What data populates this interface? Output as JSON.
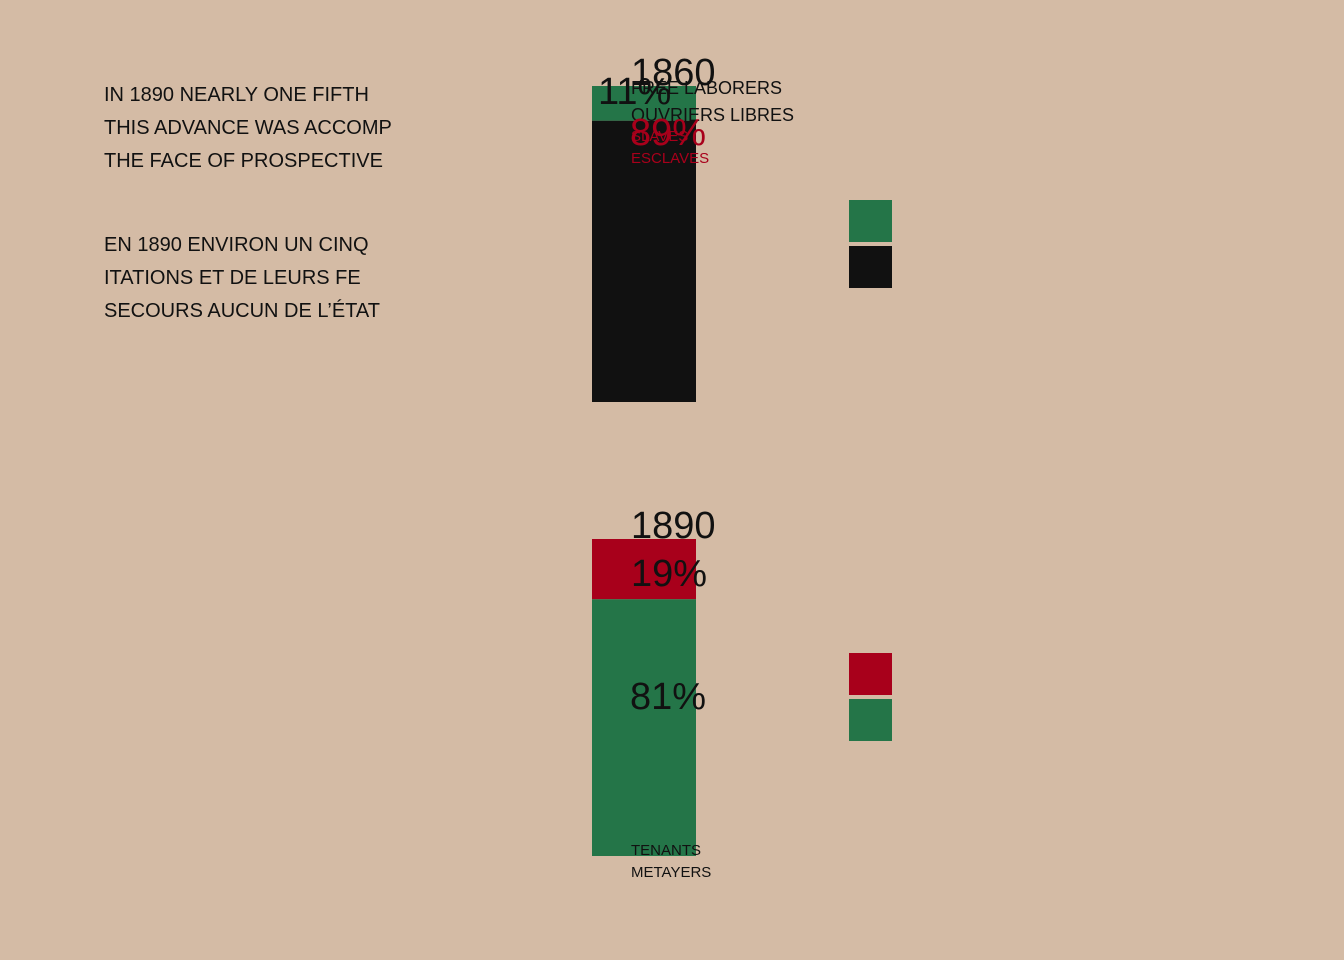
{
  "intro": {
    "english": [
      "IN 1890 NEARLY ONE FIFTH",
      "THIS ADVANCE WAS ACCOMP",
      "THE FACE OF PROSPECTIVE"
    ],
    "french": [
      "EN 1890 ENVIRON UN CINQ",
      "ITATIONS ET DE LEURS FE",
      "SECOURS AUCUN DE L’ÉTAT"
    ]
  },
  "chart_data": [
    {
      "type": "bar",
      "title": "1860",
      "segments": [
        {
          "value": 11,
          "label": "11%",
          "caption": [
            "FREE LABORERS",
            "OUVRIERS LIBRES"
          ],
          "color": "#247548"
        },
        {
          "value": 89,
          "label": "89%",
          "caption": [
            "SLAVES",
            "ESCLAVES"
          ],
          "color": "#111111"
        }
      ],
      "legend_colors": [
        "#247548",
        "#111111"
      ]
    },
    {
      "type": "bar",
      "title": "1890",
      "segments": [
        {
          "value": 19,
          "label": "19%",
          "caption": [],
          "color": "#a8001b"
        },
        {
          "value": 81,
          "label": "81%",
          "caption": [
            "TENANTS",
            "METAYERS"
          ],
          "color": "#247548"
        }
      ],
      "legend_colors": [
        "#a8001b",
        "#247548"
      ]
    }
  ]
}
